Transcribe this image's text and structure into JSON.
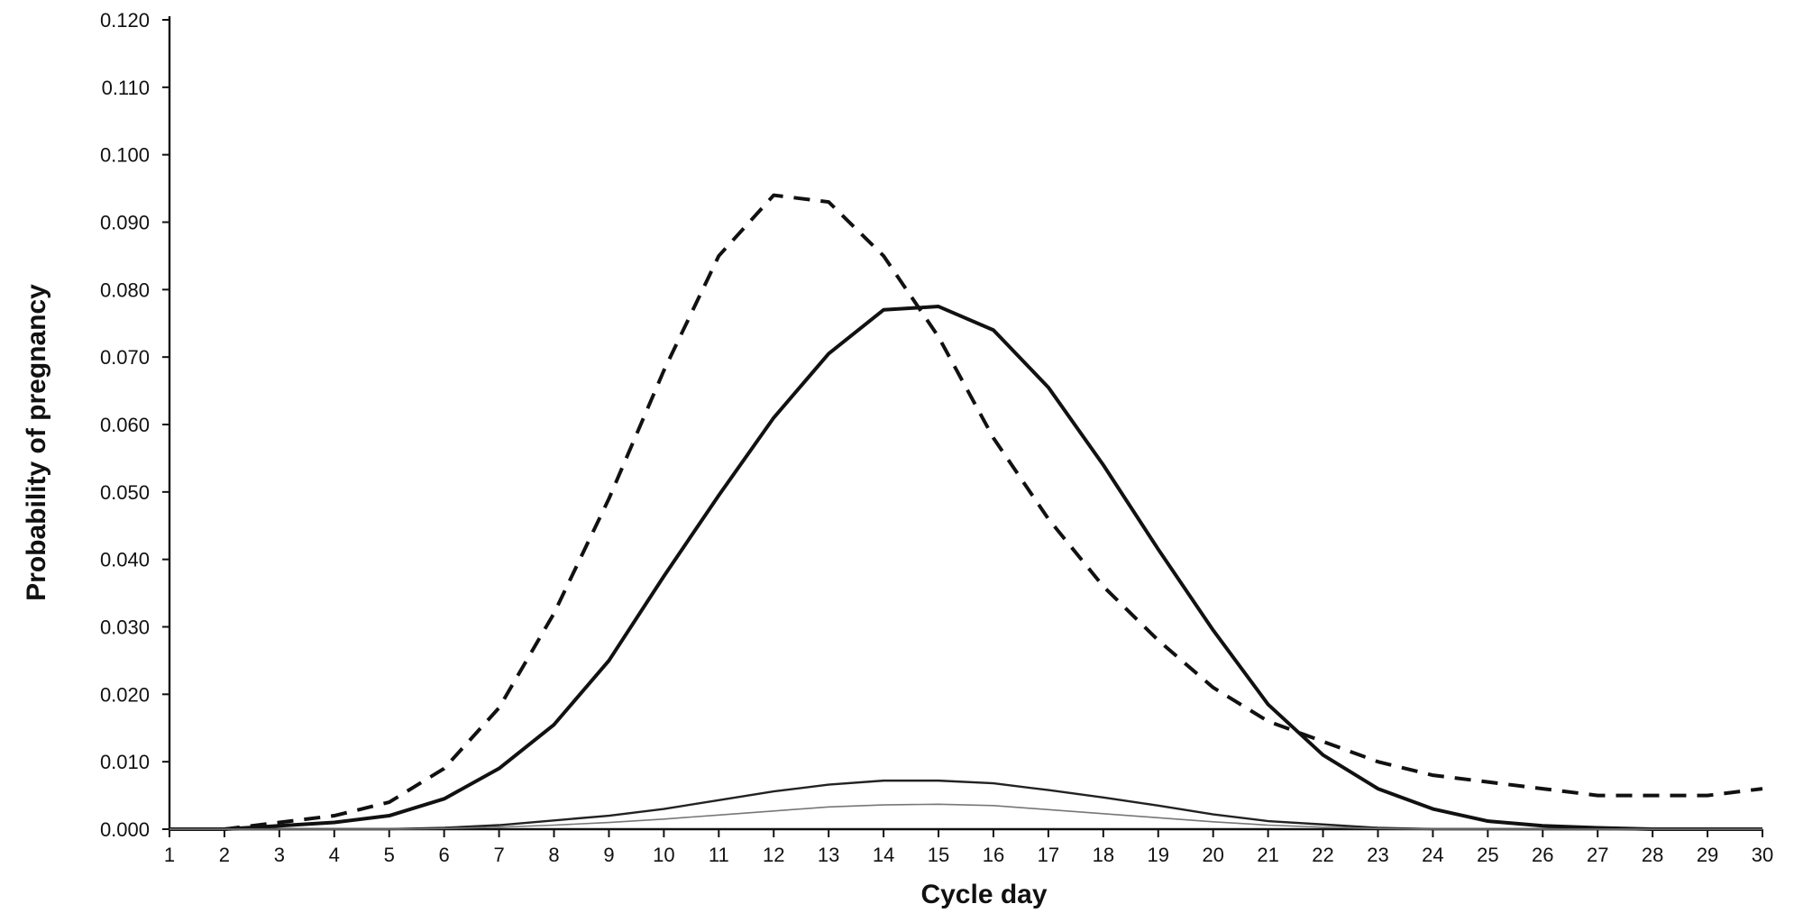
{
  "chart_data": {
    "type": "line",
    "title": "",
    "xlabel": "Cycle day",
    "ylabel": "Probability of pregnancy",
    "x": [
      1,
      2,
      3,
      4,
      5,
      6,
      7,
      8,
      9,
      10,
      11,
      12,
      13,
      14,
      15,
      16,
      17,
      18,
      19,
      20,
      21,
      22,
      23,
      24,
      25,
      26,
      27,
      28,
      29,
      30
    ],
    "x_ticks": [
      "1",
      "2",
      "3",
      "4",
      "5",
      "6",
      "7",
      "8",
      "9",
      "10",
      "11",
      "12",
      "13",
      "14",
      "15",
      "16",
      "17",
      "18",
      "19",
      "20",
      "21",
      "22",
      "23",
      "24",
      "25",
      "26",
      "27",
      "28",
      "29",
      "30"
    ],
    "y_ticks": [
      "0.000",
      "0.010",
      "0.020",
      "0.030",
      "0.040",
      "0.050",
      "0.060",
      "0.070",
      "0.080",
      "0.090",
      "0.100",
      "0.110",
      "0.120"
    ],
    "xlim": [
      1,
      30
    ],
    "ylim": [
      0,
      0.12
    ],
    "grid": false,
    "legend": "none",
    "series": [
      {
        "style": "dashed",
        "color": "#111111",
        "weight": "bold",
        "values": [
          0.0,
          0.0,
          0.001,
          0.002,
          0.004,
          0.009,
          0.018,
          0.032,
          0.049,
          0.068,
          0.085,
          0.094,
          0.093,
          0.085,
          0.073,
          0.058,
          0.046,
          0.036,
          0.028,
          0.021,
          0.016,
          0.013,
          0.01,
          0.008,
          0.007,
          0.006,
          0.005,
          0.005,
          0.005,
          0.006
        ]
      },
      {
        "style": "solid",
        "color": "#111111",
        "weight": "bold",
        "values": [
          0.0,
          0.0,
          0.0005,
          0.001,
          0.002,
          0.0045,
          0.009,
          0.0155,
          0.025,
          0.0375,
          0.0495,
          0.061,
          0.0705,
          0.077,
          0.0775,
          0.074,
          0.0655,
          0.054,
          0.0415,
          0.0295,
          0.0185,
          0.011,
          0.006,
          0.003,
          0.0012,
          0.0005,
          0.0002,
          0.0,
          0.0,
          0.0
        ]
      },
      {
        "style": "solid",
        "color": "#222222",
        "weight": "medium",
        "values": [
          0.0,
          0.0,
          0.0,
          0.0,
          0.0,
          0.0002,
          0.0006,
          0.0013,
          0.002,
          0.003,
          0.0043,
          0.0056,
          0.0066,
          0.0072,
          0.0072,
          0.0068,
          0.0058,
          0.0047,
          0.0035,
          0.0022,
          0.0012,
          0.0007,
          0.0002,
          0.0,
          0.0,
          0.0,
          0.0,
          0.0,
          0.0,
          0.0
        ]
      },
      {
        "style": "solid",
        "color": "#777777",
        "weight": "thin",
        "values": [
          0.0,
          0.0,
          0.0,
          0.0,
          0.0,
          0.0001,
          0.0003,
          0.0006,
          0.001,
          0.0015,
          0.0021,
          0.0027,
          0.0033,
          0.0036,
          0.0037,
          0.0035,
          0.0029,
          0.0023,
          0.0017,
          0.0011,
          0.0006,
          0.0003,
          0.0001,
          0.0,
          0.0,
          0.0,
          0.0,
          0.0,
          0.0,
          0.0
        ]
      }
    ]
  }
}
